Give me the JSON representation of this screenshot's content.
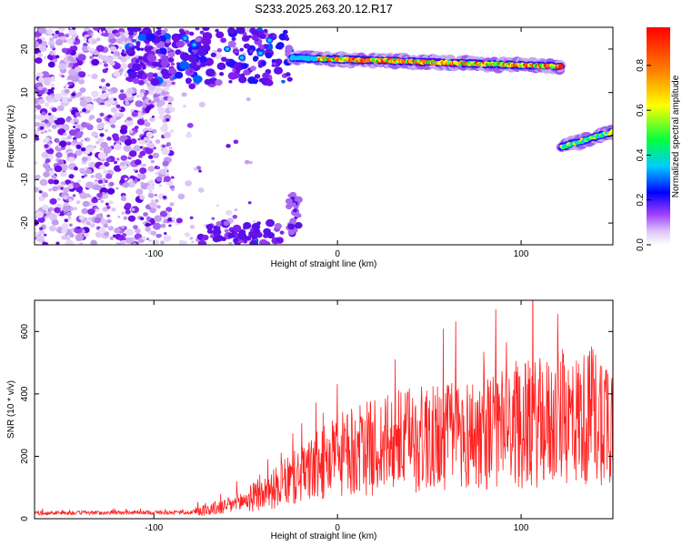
{
  "title": "S233.2025.263.20.12.R17",
  "chart_data": [
    {
      "type": "heatmap",
      "xlabel": "Height of straight line (km)",
      "ylabel": "Frequency (Hz)",
      "xlim": [
        -165,
        150
      ],
      "ylim": [
        -25,
        25
      ],
      "xticks": [
        -100,
        0,
        100
      ],
      "yticks": [
        -20,
        -10,
        0,
        10,
        20
      ],
      "colorbar": {
        "label": "Normalized spectral amplitude",
        "range": [
          0,
          0.97
        ],
        "ticks": [
          "0.0",
          "0.2",
          "0.4",
          "0.6",
          "0.8"
        ],
        "tick_values": [
          0,
          0.2,
          0.4,
          0.6,
          0.8
        ],
        "colors": [
          "#ffffff",
          "#c8a8f0",
          "#8800ff",
          "#0000ff",
          "#00ddff",
          "#00ff44",
          "#ffff00",
          "#ff8800",
          "#ff0000"
        ]
      },
      "features": [
        {
          "name": "upper band",
          "x": [
            -25,
            122
          ],
          "y": [
            18,
            16
          ]
        },
        {
          "name": "lower band",
          "x": [
            122,
            150
          ],
          "y": [
            -2.5,
            1
          ]
        }
      ]
    },
    {
      "type": "line",
      "xlabel": "Height of straight line (km)",
      "ylabel": "SNR (10 * v/v)",
      "xlim": [
        -165,
        150
      ],
      "ylim": [
        0,
        700
      ],
      "xticks": [
        -100,
        0,
        100
      ],
      "yticks": [
        0,
        200,
        400,
        600
      ],
      "color": "#ff2020",
      "trend": {
        "x": [
          -165,
          -80,
          -60,
          -40,
          -20,
          0,
          20,
          50,
          80,
          100,
          130,
          150
        ],
        "y": [
          18,
          20,
          40,
          80,
          140,
          200,
          230,
          260,
          275,
          300,
          320,
          340
        ]
      }
    }
  ]
}
